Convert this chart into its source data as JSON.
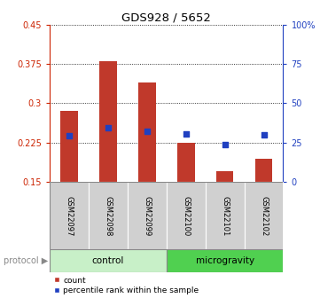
{
  "title": "GDS928 / 5652",
  "samples": [
    "GSM22097",
    "GSM22098",
    "GSM22099",
    "GSM22100",
    "GSM22101",
    "GSM22102"
  ],
  "count_top": [
    0.285,
    0.38,
    0.34,
    0.225,
    0.17,
    0.195
  ],
  "count_bottom": [
    0.15,
    0.15,
    0.15,
    0.15,
    0.15,
    0.15
  ],
  "percentile_rank": [
    0.238,
    0.253,
    0.247,
    0.242,
    0.222,
    0.24
  ],
  "ylim_left": [
    0.15,
    0.45
  ],
  "ylim_right": [
    0,
    100
  ],
  "yticks_left": [
    0.15,
    0.225,
    0.3,
    0.375,
    0.45
  ],
  "yticks_right": [
    0,
    25,
    50,
    75,
    100
  ],
  "ytick_labels_left": [
    "0.15",
    "0.225",
    "0.3",
    "0.375",
    "0.45"
  ],
  "ytick_labels_right": [
    "0",
    "25",
    "50",
    "75",
    "100%"
  ],
  "bar_color": "#c0392b",
  "dot_color": "#2040c0",
  "control_color": "#c8f0c8",
  "microgravity_color": "#50d050",
  "left_axis_color": "#cc2200",
  "right_axis_color": "#2040c0",
  "label_bg_color": "#d0d0d0",
  "bar_width": 0.45
}
